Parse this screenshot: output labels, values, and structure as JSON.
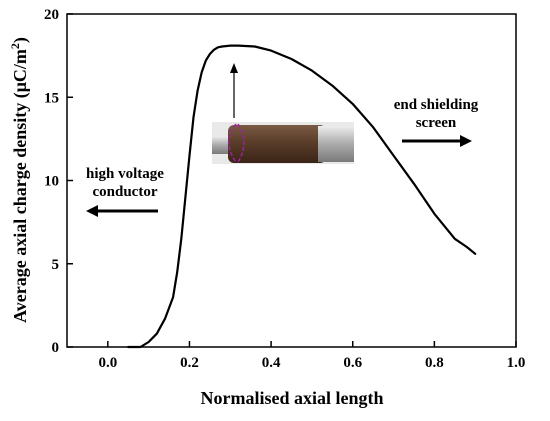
{
  "chart_data": {
    "type": "line",
    "xlabel": "Normalised axial length",
    "ylabel_main": "Average axial charge density (μC/m",
    "ylabel_sup": "2",
    "ylabel_tail": ")",
    "xlim": [
      -0.1,
      1.0
    ],
    "ylim": [
      0,
      20
    ],
    "xticks": [
      0.0,
      0.2,
      0.4,
      0.6,
      0.8,
      1.0
    ],
    "xtick_labels": [
      "0.0",
      "0.2",
      "0.4",
      "0.6",
      "0.8",
      "1.0"
    ],
    "yticks": [
      0,
      5,
      10,
      15,
      20
    ],
    "ytick_labels": [
      "0",
      "5",
      "10",
      "15",
      "20"
    ],
    "grid": false,
    "series": [
      {
        "x": [
          0.05,
          0.08,
          0.1,
          0.12,
          0.14,
          0.16,
          0.17,
          0.18,
          0.19,
          0.2,
          0.21,
          0.22,
          0.23,
          0.24,
          0.25,
          0.26,
          0.27,
          0.28,
          0.3,
          0.32,
          0.36,
          0.4,
          0.45,
          0.5,
          0.55,
          0.6,
          0.65,
          0.7,
          0.75,
          0.8,
          0.85,
          0.88,
          0.9
        ],
        "y": [
          0.0,
          0.0,
          0.3,
          0.8,
          1.7,
          3.0,
          4.5,
          6.5,
          9.0,
          11.5,
          13.8,
          15.4,
          16.5,
          17.2,
          17.6,
          17.85,
          18.0,
          18.05,
          18.1,
          18.1,
          18.05,
          17.8,
          17.3,
          16.6,
          15.7,
          14.6,
          13.2,
          11.5,
          9.8,
          8.0,
          6.5,
          6.0,
          5.6
        ]
      }
    ],
    "annotations": {
      "left_line1": "high voltage",
      "left_line2": "conductor",
      "right_line1": "end shielding",
      "right_line2": "screen"
    }
  },
  "colors": {
    "line": "#000000",
    "axis": "#000000",
    "photo_body": "#5a3d2a",
    "photo_metal": "#b8b8b8",
    "bracket": "#a020a0"
  }
}
